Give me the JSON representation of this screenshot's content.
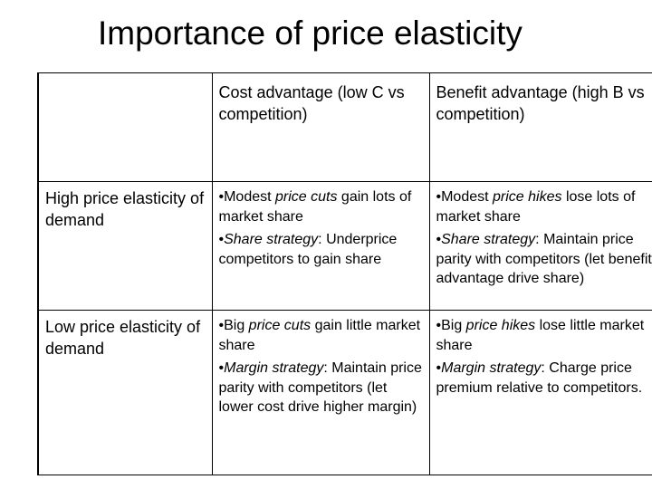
{
  "title": "Importance of price elasticity",
  "table": {
    "columns": [
      "Cost advantage (low C vs competition)",
      "Benefit advantage (high B vs competition)"
    ],
    "rows": [
      {
        "label": "High price elasticity of demand",
        "cells": [
          [
            [
              {
                "text": "•Modest "
              },
              {
                "text": "price cuts",
                "italic": true
              },
              {
                "text": " gain lots of market share"
              }
            ],
            [
              {
                "text": "•"
              },
              {
                "text": "Share strategy",
                "italic": true
              },
              {
                "text": ": Underprice competitors to gain share"
              }
            ]
          ],
          [
            [
              {
                "text": "•Modest "
              },
              {
                "text": "price hikes",
                "italic": true
              },
              {
                "text": " lose lots of market share"
              }
            ],
            [
              {
                "text": "•"
              },
              {
                "text": "Share strategy",
                "italic": true
              },
              {
                "text": ": Maintain price parity with competitors (let benefit advantage drive share)"
              }
            ]
          ]
        ]
      },
      {
        "label": "Low price elasticity of demand",
        "cells": [
          [
            [
              {
                "text": "•Big "
              },
              {
                "text": "price cuts",
                "italic": true
              },
              {
                "text": " gain little market share"
              }
            ],
            [
              {
                "text": "•"
              },
              {
                "text": "Margin strategy",
                "italic": true
              },
              {
                "text": ": Maintain price parity with competitors (let lower cost drive higher margin)"
              }
            ]
          ],
          [
            [
              {
                "text": "•Big "
              },
              {
                "text": "price hikes",
                "italic": true
              },
              {
                "text": " lose little market share"
              }
            ],
            [
              {
                "text": "•"
              },
              {
                "text": "Margin strategy",
                "italic": true
              },
              {
                "text": ": Charge price premium relative to competitors."
              }
            ]
          ]
        ]
      }
    ]
  }
}
